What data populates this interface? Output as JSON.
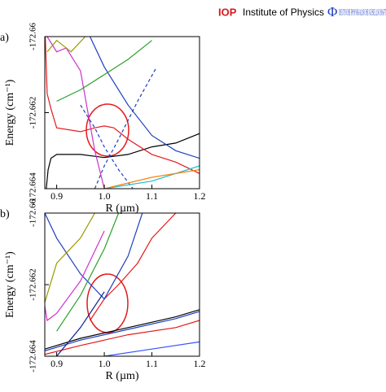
{
  "header": {
    "iop": "IOP",
    "institute": "Institute of Physics",
    "dpg_symbol": "Φ",
    "dpg": "DEUTSCHE PHYSIKALISCHE GESELLSCHAFT"
  },
  "chart_data": [
    {
      "type": "line",
      "panel": "a)",
      "xlabel": "R (µm)",
      "ylabel": "Energy (cm⁻¹)",
      "xlim": [
        0.875,
        1.2
      ],
      "xticks": [
        0.9,
        {
          "value": 1,
          "label": "1.0"
        },
        1.1,
        1.2
      ],
      "ylim": [
        -172.664,
        -172.66
      ],
      "yticks": [
        -172.664,
        -172.662,
        -172.66
      ],
      "series": [
        {
          "color": "#000000",
          "x": [
            0.878,
            0.882,
            0.888,
            0.9,
            0.95,
            1.0,
            1.05,
            1.1,
            1.15,
            1.2
          ],
          "values": [
            -172.664,
            -172.6635,
            -172.6632,
            -172.6631,
            -172.6631,
            -172.66318,
            -172.6631,
            -172.6629,
            -172.6628,
            -172.66255
          ]
        },
        {
          "color": "#e41a1c",
          "x": [
            0.876,
            0.88,
            0.888,
            0.9,
            0.95,
            0.98,
            1.0,
            1.02,
            1.05,
            1.1,
            1.15,
            1.2
          ],
          "values": [
            -172.66,
            -172.6615,
            -172.6619,
            -172.6624,
            -172.6625,
            -172.6624,
            -172.66235,
            -172.6624,
            -172.6627,
            -172.6631,
            -172.6633,
            -172.6636
          ]
        },
        {
          "color": "#1f3fbf",
          "x": [
            0.97,
            1.0,
            1.05,
            1.1,
            1.15,
            1.2
          ],
          "values": [
            -172.66,
            -172.6608,
            -172.6618,
            -172.6626,
            -172.663,
            -172.6632
          ]
        },
        {
          "color": "#2ca02c",
          "x": [
            0.9,
            0.95,
            1.0,
            1.05,
            1.1
          ],
          "values": [
            -172.6617,
            -172.6614,
            -172.661,
            -172.6606,
            -172.6601
          ]
        },
        {
          "color": "#cc33cc",
          "x": [
            0.88,
            0.9,
            0.92,
            0.95,
            0.98,
            1.0
          ],
          "values": [
            -172.66,
            -172.6604,
            -172.6603,
            -172.6609,
            -172.663,
            -172.664
          ]
        },
        {
          "color": "#999900",
          "x": [
            0.88,
            0.9,
            0.93,
            0.96
          ],
          "values": [
            -172.6604,
            -172.6601,
            -172.6604,
            -172.66
          ]
        },
        {
          "color": "#1f3fbf",
          "dash": true,
          "x": [
            0.95,
            0.98,
            1.0,
            1.03,
            1.06
          ],
          "values": [
            -172.6618,
            -172.6624,
            -172.6629,
            -172.6635,
            -172.664
          ]
        },
        {
          "color": "#1f3fbf",
          "dash": true,
          "x": [
            0.98,
            1.0,
            1.03,
            1.07,
            1.11
          ],
          "values": [
            -172.664,
            -172.6634,
            -172.6627,
            -172.6617,
            -172.6608
          ]
        },
        {
          "color": "#17becf",
          "x": [
            1.0,
            1.1,
            1.2
          ],
          "values": [
            -172.664,
            -172.6638,
            -172.6634
          ]
        },
        {
          "color": "#ff7f0e",
          "x": [
            1.0,
            1.1,
            1.2
          ],
          "values": [
            -172.664,
            -172.6637,
            -172.6635
          ]
        }
      ]
    },
    {
      "type": "line",
      "panel": "b)",
      "xlabel": "R (µm)",
      "ylabel": "Energy (cm⁻¹)",
      "xlim": [
        0.875,
        1.2
      ],
      "xticks": [
        0.9,
        {
          "value": 1,
          "label": "1.0"
        },
        1.1,
        1.2
      ],
      "ylim": [
        -172.664,
        -172.66
      ],
      "yticks": [
        -172.664,
        -172.662,
        -172.66
      ],
      "series": [
        {
          "color": "#000000",
          "x": [
            0.875,
            0.95,
            1.05,
            1.15,
            1.2
          ],
          "values": [
            -172.6638,
            -172.6635,
            -172.6632,
            -172.6629,
            -172.6627
          ]
        },
        {
          "color": "#1f3fbf",
          "x": [
            0.875,
            0.95,
            1.05,
            1.15,
            1.2
          ],
          "values": [
            -172.66385,
            -172.66355,
            -172.66325,
            -172.66295,
            -172.66275
          ]
        },
        {
          "color": "#e41a1c",
          "x": [
            0.875,
            0.95,
            1.05,
            1.15,
            1.2
          ],
          "values": [
            -172.66395,
            -172.6637,
            -172.6634,
            -172.6632,
            -172.663
          ]
        },
        {
          "color": "#e41a1c",
          "x": [
            0.97,
            1.0,
            1.03,
            1.07,
            1.1,
            1.15
          ],
          "values": [
            -172.663,
            -172.6624,
            -172.662,
            -172.6614,
            -172.6607,
            -172.66
          ]
        },
        {
          "color": "#1f3fbf",
          "x": [
            0.875,
            0.9,
            0.95,
            1.0,
            1.05,
            1.08
          ],
          "values": [
            -172.66,
            -172.6607,
            -172.6617,
            -172.6624,
            -172.6612,
            -172.66
          ]
        },
        {
          "color": "#2ca02c",
          "x": [
            0.9,
            0.95,
            1.0,
            1.03
          ],
          "values": [
            -172.6633,
            -172.6623,
            -172.661,
            -172.66
          ]
        },
        {
          "color": "#cc33cc",
          "x": [
            0.875,
            0.88,
            0.9,
            0.95,
            1.0
          ],
          "values": [
            -172.6626,
            -172.663,
            -172.6628,
            -172.6619,
            -172.6605
          ]
        },
        {
          "color": "#999900",
          "x": [
            0.875,
            0.9,
            0.95,
            0.98
          ],
          "values": [
            -172.6625,
            -172.6614,
            -172.6607,
            -172.66
          ]
        },
        {
          "color": "#0a1f8f",
          "x": [
            0.9,
            0.95,
            1.0
          ],
          "values": [
            -172.664,
            -172.6632,
            -172.6622
          ]
        },
        {
          "color": "#3355ff",
          "x": [
            1.0,
            1.1,
            1.2
          ],
          "values": [
            -172.664,
            -172.6638,
            -172.6636
          ]
        }
      ]
    }
  ]
}
